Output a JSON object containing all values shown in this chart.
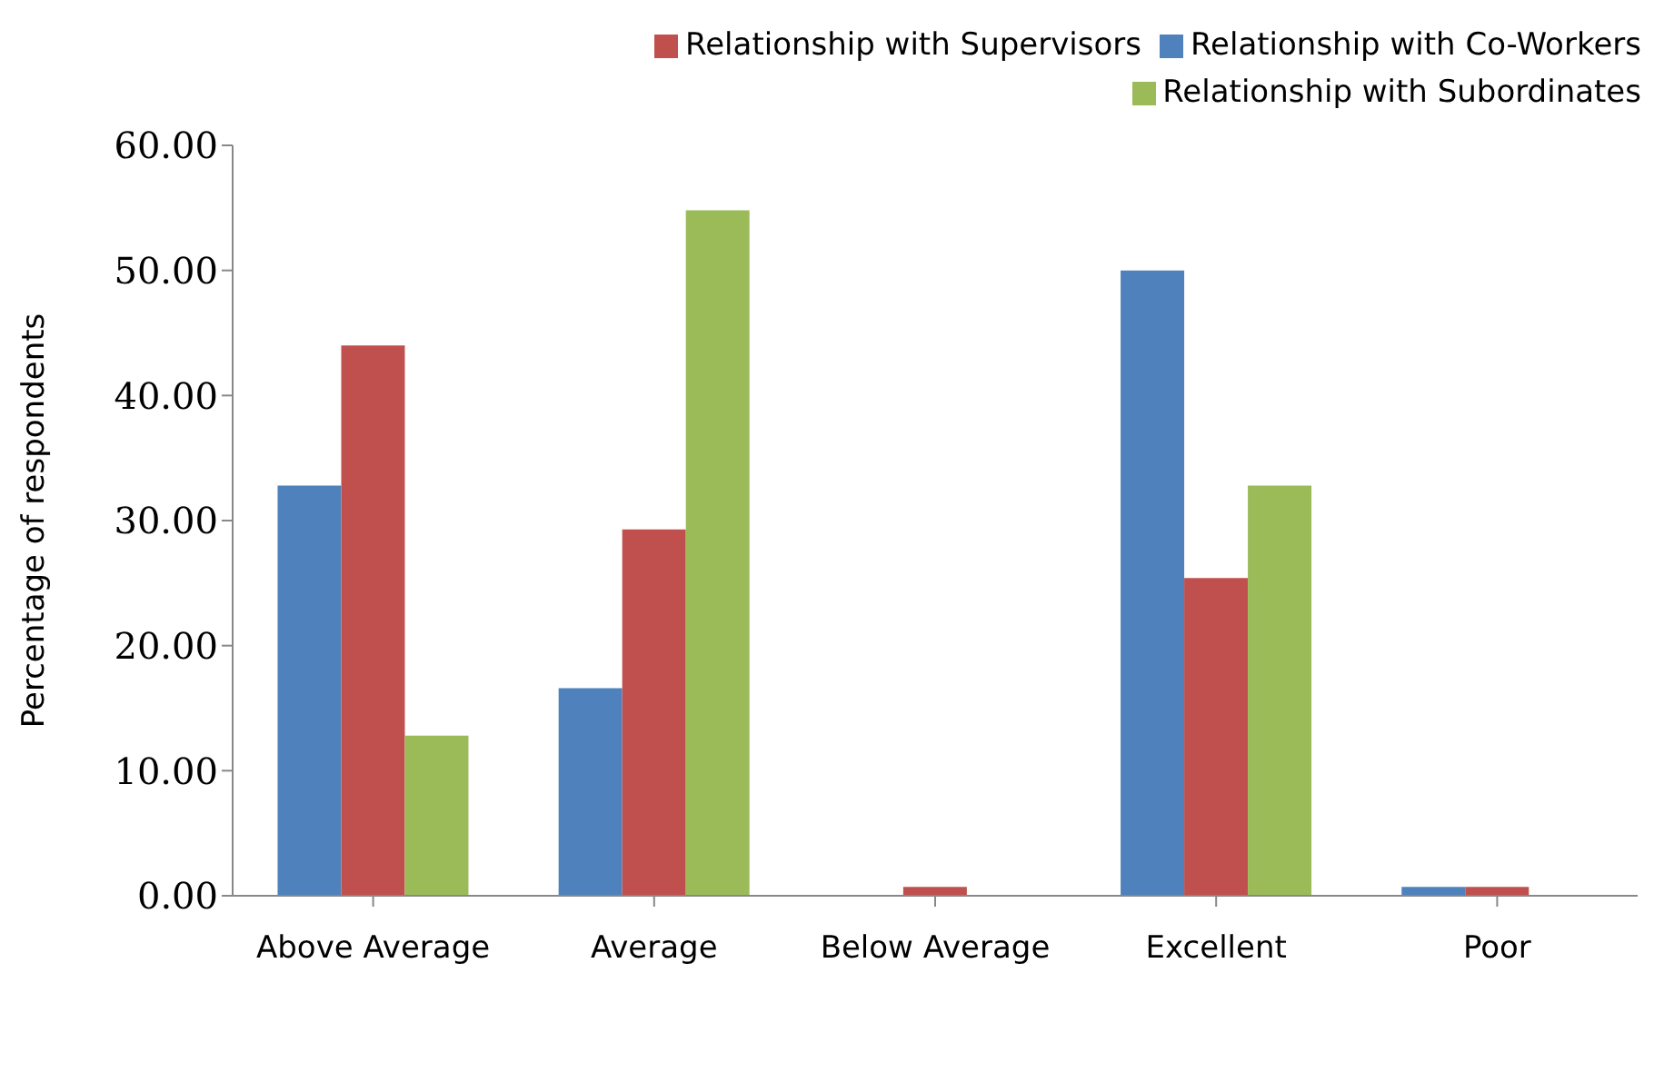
{
  "chart_data": {
    "type": "bar",
    "ylabel": "Percentage of respondents",
    "categories": [
      "Above Average",
      "Average",
      "Below  Average",
      "Excellent",
      "Poor"
    ],
    "series": [
      {
        "name": "Relationship with Co-Workers",
        "color": "#4f81bd",
        "values": [
          32.8,
          16.6,
          0,
          50.0,
          0.7
        ]
      },
      {
        "name": "Relationship with  Supervisors",
        "color": "#c0504d",
        "values": [
          44.0,
          29.3,
          0.7,
          25.4,
          0.7
        ]
      },
      {
        "name": "Relationship with Subordinates",
        "color": "#9bbb59",
        "values": [
          12.8,
          54.8,
          0,
          32.8,
          0
        ]
      }
    ],
    "ylim": [
      0,
      60
    ],
    "yticks": [
      {
        "value": 0,
        "label": "0.00"
      },
      {
        "value": 10,
        "label": "10.00"
      },
      {
        "value": 20,
        "label": "20.00"
      },
      {
        "value": 30,
        "label": "30.00"
      },
      {
        "value": 40,
        "label": "40.00"
      },
      {
        "value": 50,
        "label": "50.00"
      },
      {
        "value": 60,
        "label": "60.00"
      }
    ],
    "grid": false,
    "legend": "top right"
  }
}
